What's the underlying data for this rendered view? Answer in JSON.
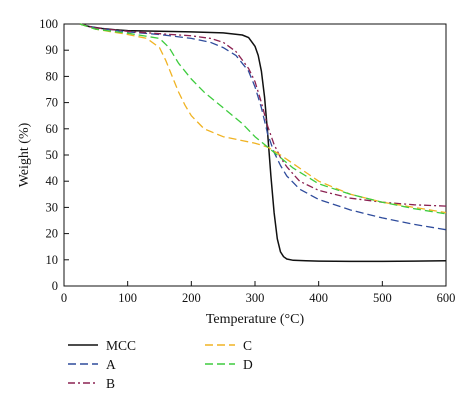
{
  "chart_data": {
    "type": "line",
    "title": "",
    "xlabel": "Temperature (°C)",
    "ylabel": "Weight (%)",
    "xlim": [
      0,
      600
    ],
    "ylim": [
      0,
      100
    ],
    "xticks": [
      0,
      100,
      200,
      300,
      400,
      500,
      600
    ],
    "yticks": [
      0,
      10,
      20,
      30,
      40,
      50,
      60,
      70,
      80,
      90,
      100
    ],
    "grid": false,
    "legend_position": "bottom",
    "series": [
      {
        "name": "MCC",
        "color": "#111111",
        "dash": "solid",
        "x": [
          25,
          40,
          60,
          80,
          100,
          150,
          200,
          250,
          280,
          290,
          300,
          305,
          310,
          315,
          320,
          325,
          330,
          335,
          340,
          345,
          350,
          360,
          380,
          400,
          450,
          500,
          550,
          600
        ],
        "y": [
          100,
          99,
          98.3,
          97.8,
          97.5,
          97.2,
          97.0,
          96.6,
          95.8,
          94.8,
          91.5,
          88,
          82,
          72,
          58,
          42,
          28,
          18,
          13,
          11.2,
          10.3,
          9.8,
          9.6,
          9.5,
          9.4,
          9.4,
          9.5,
          9.6
        ]
      },
      {
        "name": "A",
        "color": "#2f4c9c",
        "dash": "8,4",
        "x": [
          25,
          50,
          100,
          150,
          200,
          230,
          250,
          270,
          290,
          300,
          310,
          320,
          330,
          340,
          350,
          370,
          400,
          450,
          500,
          550,
          600
        ],
        "y": [
          100,
          98.5,
          97,
          96,
          94.5,
          93,
          91,
          88,
          82,
          76,
          68,
          58,
          51,
          46,
          42,
          37,
          33,
          29,
          26,
          23.5,
          21.5
        ]
      },
      {
        "name": "B",
        "color": "#8b2252",
        "dash": "7,3,2,3",
        "x": [
          25,
          50,
          100,
          150,
          200,
          230,
          250,
          270,
          290,
          300,
          310,
          320,
          330,
          340,
          350,
          370,
          400,
          450,
          500,
          550,
          600
        ],
        "y": [
          100,
          98.5,
          97.2,
          96.3,
          95.5,
          94.5,
          93,
          89.5,
          83,
          78,
          70,
          61,
          54,
          49,
          45.5,
          40,
          36.5,
          33.5,
          32,
          31,
          30.5
        ]
      },
      {
        "name": "C",
        "color": "#f0b323",
        "dash": "8,4",
        "x": [
          25,
          50,
          100,
          130,
          150,
          160,
          170,
          180,
          190,
          200,
          220,
          250,
          280,
          300,
          320,
          340,
          370,
          400,
          450,
          500,
          550,
          600
        ],
        "y": [
          100,
          98,
          96,
          94.5,
          91,
          86,
          80,
          74,
          69,
          65,
          60,
          57,
          55.5,
          54.5,
          53,
          50,
          45,
          40,
          35,
          32,
          30,
          28
        ]
      },
      {
        "name": "D",
        "color": "#3ecc3e",
        "dash": "8,4",
        "x": [
          25,
          50,
          100,
          150,
          165,
          180,
          200,
          220,
          250,
          280,
          300,
          320,
          340,
          360,
          400,
          450,
          500,
          550,
          600
        ],
        "y": [
          100,
          98,
          96.5,
          94.5,
          91,
          85,
          79,
          74,
          68,
          62,
          57,
          53,
          49,
          45,
          39,
          35,
          32,
          29.5,
          27.5
        ]
      }
    ]
  }
}
